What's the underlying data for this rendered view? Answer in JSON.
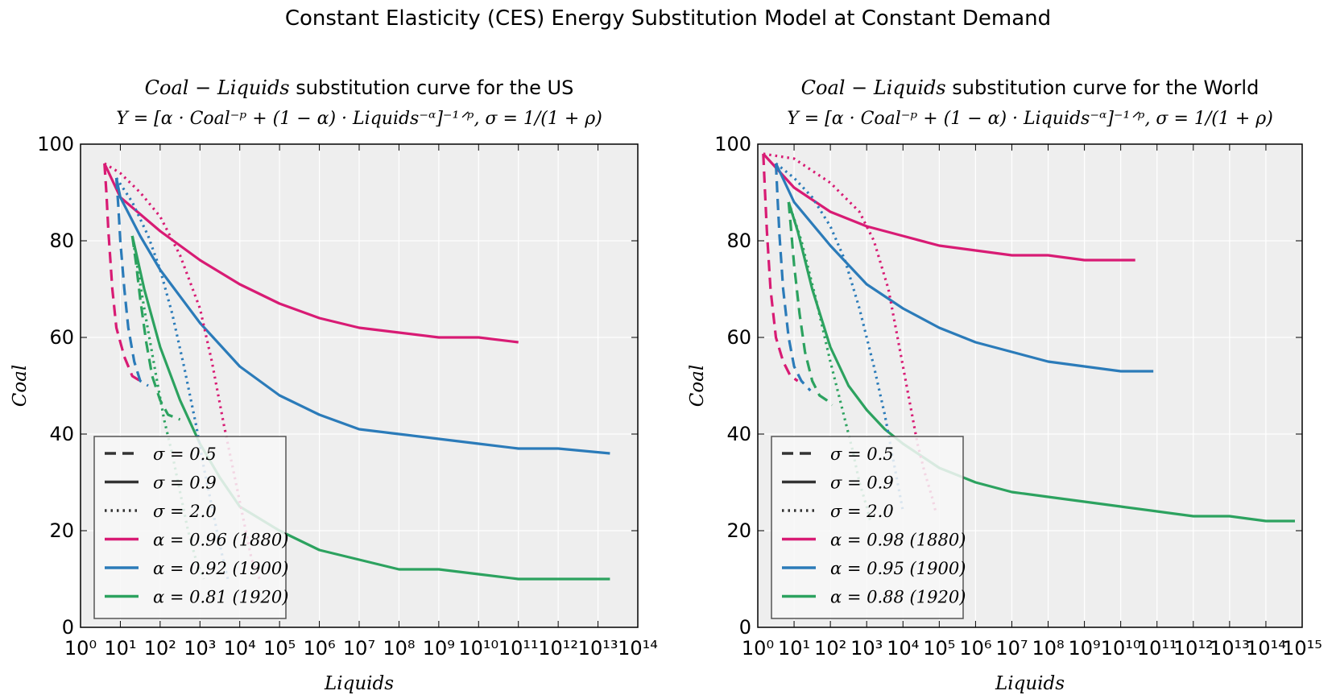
{
  "suptitle": "Constant Elasticity (CES) Energy Substitution Model at Constant Demand",
  "colors": {
    "a1880": "#d81b74",
    "a1900": "#2b7bb9",
    "a1920": "#2ca25f",
    "plot_bg": "#eeeeee",
    "axis": "#000000"
  },
  "chart_data": [
    {
      "type": "line",
      "title_line1_math": "Coal − Liquids",
      "title_line1_text": " substitution curve for the US",
      "title_line2": "Y = [α · Coal⁻ᵖ + (1 − α) · Liquids⁻ᵅ]⁻¹ᐟᵖ, σ = 1/(1 + ρ)",
      "xlabel": "Liquids",
      "ylabel": "Coal",
      "xscale": "log",
      "xlim_exp": [
        0,
        14
      ],
      "ylim": [
        0,
        100
      ],
      "xticks": [
        "10⁰",
        "10¹",
        "10²",
        "10³",
        "10⁴",
        "10⁵",
        "10⁶",
        "10⁷",
        "10⁸",
        "10⁹",
        "10¹⁰",
        "10¹¹",
        "10¹²",
        "10¹³",
        "10¹⁴"
      ],
      "yticks": [
        "0",
        "20",
        "40",
        "60",
        "80",
        "100"
      ],
      "grid": true,
      "legend_placement": "lower-left",
      "legend": [
        {
          "label": "σ = 0.5",
          "style": "dashed",
          "color": "#333333"
        },
        {
          "label": "σ = 0.9",
          "style": "solid",
          "color": "#333333"
        },
        {
          "label": "σ = 2.0",
          "style": "dotted",
          "color": "#333333"
        },
        {
          "label": "α = 0.96 (1880)",
          "style": "solid",
          "color": "#d81b74"
        },
        {
          "label": "α = 0.92 (1900)",
          "style": "solid",
          "color": "#2b7bb9"
        },
        {
          "label": "α = 0.81 (1920)",
          "style": "solid",
          "color": "#2ca25f"
        }
      ],
      "series": [
        {
          "color": "#d81b74",
          "style": "solid",
          "x": [
            0.6,
            1,
            2,
            3,
            4,
            5,
            6,
            7,
            8,
            9,
            10,
            11
          ],
          "y": [
            96,
            89,
            82,
            76,
            71,
            67,
            64,
            62,
            61,
            60,
            60,
            59
          ]
        },
        {
          "color": "#2b7bb9",
          "style": "solid",
          "x": [
            0.9,
            1,
            1.5,
            2,
            3,
            4,
            5,
            6,
            7,
            8,
            9,
            10,
            11,
            12,
            13.3
          ],
          "y": [
            93,
            89,
            81,
            74,
            63,
            54,
            48,
            44,
            41,
            40,
            39,
            38,
            37,
            37,
            36
          ]
        },
        {
          "color": "#2ca25f",
          "style": "solid",
          "x": [
            1.3,
            1.6,
            2,
            2.5,
            3,
            3.5,
            4,
            5,
            6,
            7,
            8,
            9,
            10,
            11,
            12,
            13.3
          ],
          "y": [
            81,
            70,
            58,
            47,
            38,
            31,
            25,
            20,
            16,
            14,
            12,
            12,
            11,
            10,
            10,
            10
          ]
        },
        {
          "color": "#d81b74",
          "style": "dashed",
          "x": [
            0.6,
            0.65,
            0.7,
            0.8,
            0.9,
            1.1,
            1.3,
            1.5
          ],
          "y": [
            96,
            90,
            82,
            70,
            62,
            56,
            52,
            51
          ]
        },
        {
          "color": "#2b7bb9",
          "style": "dashed",
          "x": [
            0.9,
            0.95,
            1,
            1.1,
            1.2,
            1.35,
            1.5,
            1.7
          ],
          "y": [
            93,
            87,
            80,
            70,
            62,
            55,
            51,
            50
          ]
        },
        {
          "color": "#2ca25f",
          "style": "dashed",
          "x": [
            1.3,
            1.4,
            1.5,
            1.65,
            1.8,
            2.0,
            2.2,
            2.5
          ],
          "y": [
            81,
            75,
            68,
            59,
            52,
            47,
            44,
            43
          ]
        },
        {
          "color": "#d81b74",
          "style": "dotted",
          "x": [
            0.6,
            1,
            1.5,
            2,
            2.5,
            3,
            3.3,
            3.6,
            3.9,
            4.1,
            4.3,
            4.5
          ],
          "y": [
            96,
            94,
            90,
            85,
            77,
            66,
            55,
            42,
            30,
            22,
            14,
            10
          ]
        },
        {
          "color": "#2b7bb9",
          "style": "dotted",
          "x": [
            0.9,
            1.3,
            1.7,
            2,
            2.3,
            2.6,
            2.9,
            3.1,
            3.3,
            3.5,
            3.7
          ],
          "y": [
            93,
            88,
            81,
            74,
            65,
            54,
            42,
            33,
            25,
            17,
            10
          ]
        },
        {
          "color": "#2ca25f",
          "style": "dotted",
          "x": [
            1.3,
            1.6,
            1.9,
            2.1,
            2.3,
            2.5,
            2.7,
            2.9,
            3.1
          ],
          "y": [
            81,
            66,
            52,
            43,
            36,
            28,
            20,
            14,
            10
          ]
        }
      ]
    },
    {
      "type": "line",
      "title_line1_math": "Coal − Liquids",
      "title_line1_text": " substitution curve for the World",
      "title_line2": "Y = [α · Coal⁻ᵖ + (1 − α) · Liquids⁻ᵅ]⁻¹ᐟᵖ, σ = 1/(1 + ρ)",
      "xlabel": "Liquids",
      "ylabel": "Coal",
      "xscale": "log",
      "xlim_exp": [
        0,
        15
      ],
      "ylim": [
        0,
        100
      ],
      "xticks": [
        "10⁰",
        "10¹",
        "10²",
        "10³",
        "10⁴",
        "10⁵",
        "10⁶",
        "10⁷",
        "10⁸",
        "10⁹",
        "10¹⁰",
        "10¹¹",
        "10¹²",
        "10¹³",
        "10¹⁴",
        "10¹⁵"
      ],
      "yticks": [
        "0",
        "20",
        "40",
        "60",
        "80",
        "100"
      ],
      "grid": true,
      "legend_placement": "lower-left",
      "legend": [
        {
          "label": "σ = 0.5",
          "style": "dashed",
          "color": "#333333"
        },
        {
          "label": "σ = 0.9",
          "style": "solid",
          "color": "#333333"
        },
        {
          "label": "σ = 2.0",
          "style": "dotted",
          "color": "#333333"
        },
        {
          "label": "α = 0.98 (1880)",
          "style": "solid",
          "color": "#d81b74"
        },
        {
          "label": "α = 0.95 (1900)",
          "style": "solid",
          "color": "#2b7bb9"
        },
        {
          "label": "α = 0.88 (1920)",
          "style": "solid",
          "color": "#2ca25f"
        }
      ],
      "series": [
        {
          "color": "#d81b74",
          "style": "solid",
          "x": [
            0.15,
            1,
            2,
            3,
            4,
            5,
            6,
            7,
            8,
            9,
            10,
            10.4
          ],
          "y": [
            98,
            91,
            86,
            83,
            81,
            79,
            78,
            77,
            77,
            76,
            76,
            76
          ]
        },
        {
          "color": "#2b7bb9",
          "style": "solid",
          "x": [
            0.5,
            1,
            2,
            3,
            4,
            5,
            6,
            7,
            8,
            9,
            10,
            10.9
          ],
          "y": [
            96,
            88,
            79,
            71,
            66,
            62,
            59,
            57,
            55,
            54,
            53,
            53
          ]
        },
        {
          "color": "#2ca25f",
          "style": "solid",
          "x": [
            0.85,
            1.1,
            1.5,
            2,
            2.5,
            3,
            3.5,
            4,
            5,
            6,
            7,
            8,
            9,
            10,
            11,
            12,
            13,
            14,
            14.8
          ],
          "y": [
            88,
            82,
            70,
            58,
            50,
            45,
            41,
            38,
            33,
            30,
            28,
            27,
            26,
            25,
            24,
            23,
            23,
            22,
            22
          ]
        },
        {
          "color": "#d81b74",
          "style": "dashed",
          "x": [
            0.15,
            0.2,
            0.25,
            0.35,
            0.5,
            0.7,
            0.9,
            1.1
          ],
          "y": [
            98,
            90,
            82,
            70,
            60,
            55,
            52,
            51
          ]
        },
        {
          "color": "#2b7bb9",
          "style": "dashed",
          "x": [
            0.5,
            0.55,
            0.6,
            0.7,
            0.85,
            1.0,
            1.2,
            1.45
          ],
          "y": [
            96,
            88,
            81,
            70,
            60,
            54,
            51,
            49
          ]
        },
        {
          "color": "#2ca25f",
          "style": "dashed",
          "x": [
            0.85,
            0.92,
            1.0,
            1.15,
            1.3,
            1.5,
            1.7,
            1.9,
            2.05
          ],
          "y": [
            88,
            82,
            75,
            65,
            57,
            51,
            48,
            47,
            46
          ]
        },
        {
          "color": "#d81b74",
          "style": "dotted",
          "x": [
            0.15,
            1,
            2,
            2.8,
            3.2,
            3.6,
            3.9,
            4.2,
            4.4,
            4.6,
            4.8,
            4.9
          ],
          "y": [
            98,
            97,
            92,
            86,
            80,
            70,
            58,
            46,
            38,
            32,
            27,
            24
          ]
        },
        {
          "color": "#2b7bb9",
          "style": "dotted",
          "x": [
            0.5,
            1,
            1.5,
            2,
            2.4,
            2.8,
            3.2,
            3.5,
            3.7,
            3.9,
            4.0
          ],
          "y": [
            96,
            93,
            89,
            83,
            76,
            66,
            54,
            44,
            36,
            28,
            24
          ]
        },
        {
          "color": "#2ca25f",
          "style": "dotted",
          "x": [
            0.85,
            1.2,
            1.6,
            2,
            2.3,
            2.6,
            2.8,
            3.0,
            3.1
          ],
          "y": [
            88,
            80,
            68,
            55,
            46,
            37,
            30,
            25,
            22
          ]
        }
      ]
    }
  ]
}
